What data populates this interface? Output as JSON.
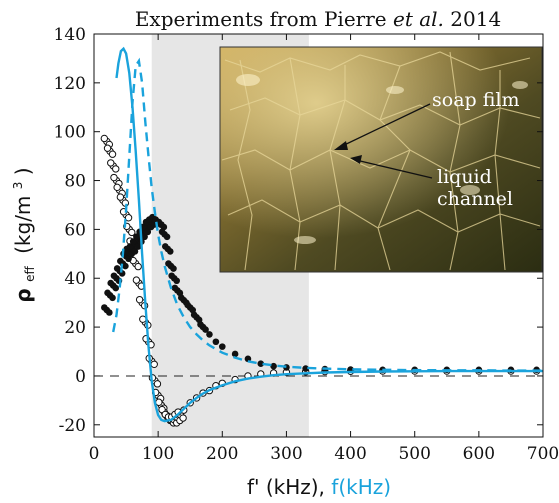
{
  "chart_data": {
    "type": "scatter",
    "title_main": "Experiments from Pierre",
    "title_etal": "et al.",
    "title_year": "2014",
    "xlabel_black": "f' (kHz),",
    "xlabel_blue": "f(kHz)",
    "ylabel_main": "ρ",
    "ylabel_sub": "eff",
    "ylabel_units_pre": "(kg/m",
    "ylabel_units_sup": "3",
    "ylabel_units_post": ")",
    "xlim": [
      0,
      700
    ],
    "ylim": [
      -25,
      140
    ],
    "x_ticks": [
      0,
      100,
      200,
      300,
      400,
      500,
      600,
      700
    ],
    "y_ticks": [
      -20,
      0,
      20,
      40,
      60,
      80,
      100,
      120,
      140
    ],
    "x_tick_labels": [
      "0",
      "100",
      "200",
      "300",
      "400",
      "500",
      "600",
      "700"
    ],
    "y_tick_labels": [
      "-20",
      "0",
      "20",
      "40",
      "60",
      "80",
      "100",
      "120",
      "140"
    ],
    "shaded_band_x": [
      90,
      335
    ],
    "zero_line_y": 0,
    "annotations": [
      {
        "text": "soap film"
      },
      {
        "text": "liquid"
      },
      {
        "text": "channel"
      }
    ],
    "colors": {
      "model": "#1aa3dc",
      "shade": "#e6e6e6",
      "points": "#111111"
    },
    "series": [
      {
        "kind": "open-markers",
        "x": [
          20,
          25,
          30,
          35,
          40,
          45,
          50,
          55,
          60,
          65,
          70,
          75,
          80,
          85,
          90,
          95,
          100,
          105,
          110,
          115,
          120,
          125,
          130,
          135,
          140,
          150,
          160,
          170,
          180,
          190,
          200,
          220,
          240,
          260,
          280,
          300,
          330,
          360,
          400,
          450,
          500,
          550,
          600,
          650,
          690
        ],
        "y": [
          96,
          92,
          86,
          80,
          76,
          72,
          66,
          60,
          54,
          46,
          38,
          30,
          22,
          14,
          6,
          -2,
          -8,
          -12,
          -15,
          -17,
          -18,
          -18,
          -17,
          -16,
          -14,
          -11,
          -9,
          -7,
          -6,
          -4,
          -3,
          -1.5,
          0,
          0.8,
          1.2,
          1.5,
          1.7,
          1.8,
          1.9,
          2,
          2,
          2,
          2,
          2,
          2
        ]
      },
      {
        "kind": "filled-markers",
        "x": [
          20,
          25,
          30,
          35,
          40,
          45,
          50,
          55,
          60,
          65,
          70,
          75,
          80,
          85,
          90,
          95,
          100,
          105,
          110,
          115,
          120,
          125,
          130,
          140,
          150,
          160,
          170,
          180,
          190,
          200,
          220,
          240,
          260,
          280,
          300,
          330,
          360,
          400,
          450,
          500,
          550,
          600,
          650,
          690
        ],
        "y": [
          27,
          33,
          37,
          40,
          43,
          46,
          49,
          51,
          52,
          54,
          56,
          58,
          60,
          62,
          63,
          64,
          63,
          62,
          58,
          52,
          45,
          40,
          35,
          31,
          28,
          24,
          20,
          17,
          14,
          12,
          9,
          7,
          5,
          4,
          3.5,
          3,
          2.8,
          2.6,
          2.5,
          2.5,
          2.5,
          2.5,
          2.5,
          2.5
        ]
      },
      {
        "kind": "model-solid",
        "x": [
          35,
          38,
          42,
          46,
          50,
          55,
          60,
          65,
          70,
          75,
          80,
          85,
          90,
          95,
          100,
          105,
          110,
          120,
          130,
          140,
          150,
          160,
          170,
          180,
          200,
          220,
          240,
          260,
          280,
          300,
          330,
          360,
          400,
          450,
          500,
          550,
          600,
          650,
          700
        ],
        "y": [
          122,
          128,
          133,
          134,
          132,
          124,
          110,
          92,
          72,
          50,
          30,
          12,
          -2,
          -11,
          -16,
          -18,
          -18.5,
          -18,
          -16,
          -13.5,
          -11,
          -9,
          -7.2,
          -5.8,
          -3.8,
          -2.2,
          -1.1,
          -0.3,
          0.3,
          0.7,
          1.1,
          1.4,
          1.6,
          1.8,
          1.9,
          2,
          2,
          2,
          2
        ]
      },
      {
        "kind": "model-dashed",
        "x": [
          30,
          35,
          40,
          45,
          50,
          55,
          60,
          65,
          70,
          75,
          80,
          85,
          90,
          95,
          100,
          105,
          110,
          120,
          130,
          140,
          150,
          160,
          170,
          180,
          200,
          220,
          240,
          260,
          280,
          300,
          330,
          360,
          400,
          450,
          500,
          550,
          600,
          650,
          700
        ],
        "y": [
          18,
          25,
          36,
          50,
          68,
          90,
          112,
          127,
          129,
          120,
          104,
          90,
          77,
          67,
          58,
          51,
          45,
          36,
          29,
          24,
          20,
          17,
          14.5,
          12.5,
          9.5,
          7.5,
          6,
          5,
          4.3,
          3.8,
          3.3,
          3,
          2.7,
          2.5,
          2.4,
          2.3,
          2.3,
          2.2,
          2.2
        ]
      }
    ]
  }
}
